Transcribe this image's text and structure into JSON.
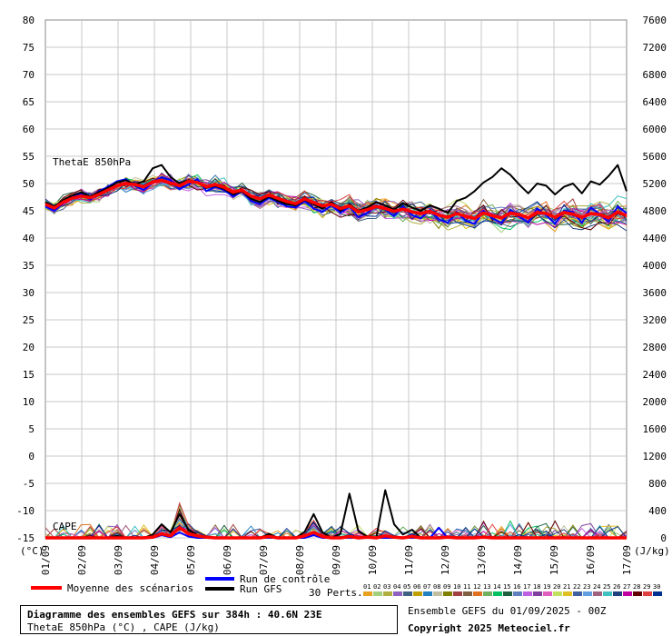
{
  "chart_data": {
    "type": "line",
    "title": "Diagramme des ensembles GEFS sur 384h : 40.6N 23E",
    "subtitle": "ThetaE 850hPa (°C) , CAPE (J/kg)",
    "panel_labels": {
      "thetae": "ThetaE 850hPa",
      "cape": "CAPE"
    },
    "y_left": {
      "unit_label": "(°C)",
      "ticks": [
        80,
        75,
        70,
        65,
        60,
        55,
        50,
        45,
        40,
        35,
        30,
        25,
        20,
        15,
        10,
        5,
        0,
        -5,
        -10,
        -15
      ],
      "range": [
        -15,
        80
      ]
    },
    "y_right": {
      "unit_label": "(J/kg)",
      "ticks": [
        7600,
        7200,
        6800,
        6400,
        6000,
        5600,
        5200,
        4800,
        4400,
        4000,
        3600,
        3200,
        2800,
        2400,
        2000,
        1600,
        1200,
        800,
        400,
        0
      ],
      "range": [
        0,
        7600
      ]
    },
    "x_ticks": [
      "01/09",
      "02/09",
      "03/09",
      "04/09",
      "05/09",
      "06/09",
      "07/09",
      "08/09",
      "09/09",
      "10/09",
      "11/09",
      "12/09",
      "13/09",
      "14/09",
      "15/09",
      "16/09",
      "17/09"
    ],
    "x_days": 16,
    "grid": true,
    "series": [
      {
        "name": "Moyenne des scénarios",
        "color": "#ff0000",
        "kind": "thetae",
        "values": [
          46.2,
          45.5,
          46.6,
          47.3,
          47.7,
          47.4,
          48.0,
          48.8,
          49.6,
          50.0,
          49.8,
          49.4,
          50.3,
          50.6,
          50.1,
          49.6,
          50.4,
          50.2,
          49.4,
          49.8,
          49.3,
          48.4,
          48.8,
          47.7,
          47.2,
          47.9,
          47.3,
          46.7,
          46.3,
          47.2,
          46.5,
          45.9,
          46.2,
          45.4,
          45.9,
          44.8,
          45.2,
          45.8,
          45.4,
          44.9,
          45.3,
          44.8,
          44.5,
          44.9,
          44.2,
          43.8,
          44.5,
          44.0,
          43.6,
          44.6,
          44.1,
          43.7,
          44.6,
          44.3,
          43.7,
          44.7,
          44.5,
          43.8,
          44.7,
          44.4,
          43.8,
          44.5,
          44.3,
          43.7,
          44.8,
          44.1
        ]
      },
      {
        "name": "Run de contrôle",
        "color": "#0000ff",
        "kind": "thetae",
        "values": [
          45.8,
          45.0,
          46.4,
          47.6,
          48.2,
          47.0,
          48.6,
          49.4,
          50.4,
          50.8,
          49.6,
          48.8,
          50.2,
          51.2,
          50.6,
          49.0,
          49.8,
          50.8,
          48.6,
          49.4,
          48.8,
          47.6,
          48.6,
          46.8,
          46.2,
          47.4,
          46.6,
          45.8,
          45.6,
          46.8,
          45.4,
          44.8,
          46.0,
          44.6,
          45.8,
          43.8,
          44.6,
          46.0,
          45.2,
          44.0,
          45.8,
          44.2,
          43.6,
          45.2,
          43.4,
          42.8,
          44.8,
          43.2,
          42.6,
          45.0,
          43.6,
          42.8,
          45.2,
          44.0,
          42.8,
          45.4,
          44.2,
          42.6,
          45.0,
          44.8,
          42.8,
          45.6,
          44.4,
          43.0,
          45.8,
          44.6
        ]
      },
      {
        "name": "Run GFS",
        "color": "#000000",
        "kind": "thetae",
        "values": [
          46.6,
          45.8,
          47.0,
          47.8,
          48.4,
          47.6,
          48.4,
          49.2,
          50.2,
          50.6,
          49.8,
          50.4,
          52.8,
          53.4,
          51.2,
          50.0,
          50.6,
          50.2,
          49.2,
          49.6,
          49.0,
          48.0,
          48.6,
          47.2,
          46.6,
          47.6,
          46.8,
          46.2,
          46.0,
          47.0,
          46.2,
          45.4,
          46.6,
          45.0,
          46.2,
          45.0,
          45.6,
          46.6,
          46.0,
          45.2,
          46.4,
          45.6,
          45.0,
          46.0,
          45.4,
          44.6,
          46.8,
          47.4,
          48.6,
          50.2,
          51.2,
          52.8,
          51.6,
          49.8,
          48.2,
          50.0,
          49.6,
          48.0,
          49.4,
          50.0,
          48.2,
          50.4,
          49.8,
          51.4,
          53.4,
          48.6
        ]
      },
      {
        "name": "Moyenne des scénarios",
        "color": "#ff0000",
        "kind": "cape",
        "values": [
          0,
          0,
          0,
          0,
          0,
          0,
          0,
          0,
          0,
          0,
          0,
          0,
          10,
          60,
          30,
          150,
          60,
          30,
          10,
          0,
          0,
          0,
          0,
          0,
          0,
          20,
          0,
          0,
          0,
          30,
          80,
          20,
          0,
          0,
          20,
          0,
          10,
          0,
          30,
          10,
          0,
          20,
          0,
          0,
          0,
          10,
          0,
          0,
          0,
          10,
          0,
          0,
          0,
          0,
          0,
          0,
          0,
          0,
          0,
          0,
          0,
          0,
          0,
          0,
          0,
          0
        ]
      },
      {
        "name": "Run de contrôle",
        "color": "#0000ff",
        "kind": "cape",
        "values": [
          0,
          0,
          0,
          0,
          0,
          0,
          0,
          0,
          0,
          0,
          0,
          0,
          0,
          40,
          10,
          80,
          20,
          0,
          0,
          0,
          0,
          0,
          0,
          0,
          0,
          0,
          0,
          0,
          0,
          0,
          40,
          0,
          0,
          0,
          0,
          0,
          0,
          0,
          0,
          0,
          0,
          0,
          0,
          0,
          150,
          0,
          0,
          0,
          0,
          0,
          0,
          0,
          0,
          0,
          0,
          0,
          0,
          0,
          0,
          0,
          0,
          0,
          0,
          0,
          0,
          0
        ]
      },
      {
        "name": "Run GFS",
        "color": "#000000",
        "kind": "cape",
        "values": [
          0,
          0,
          0,
          0,
          0,
          0,
          0,
          0,
          30,
          0,
          0,
          0,
          50,
          200,
          80,
          350,
          120,
          40,
          0,
          0,
          0,
          0,
          0,
          0,
          0,
          60,
          0,
          0,
          0,
          90,
          350,
          80,
          0,
          60,
          650,
          100,
          20,
          0,
          700,
          200,
          50,
          120,
          0,
          0,
          0,
          0,
          0,
          0,
          0,
          0,
          0,
          0,
          0,
          0,
          0,
          0,
          0,
          0,
          0,
          0,
          0,
          0,
          0,
          0,
          0,
          0
        ]
      }
    ],
    "perturbations": {
      "label": "30 Perts.",
      "codes": [
        "01",
        "02",
        "03",
        "04",
        "05",
        "06",
        "07",
        "08",
        "09",
        "10",
        "11",
        "12",
        "13",
        "14",
        "15",
        "16",
        "17",
        "18",
        "19",
        "20",
        "21",
        "22",
        "23",
        "24",
        "25",
        "26",
        "27",
        "28",
        "29",
        "30"
      ],
      "colors": [
        "#e8a020",
        "#a0d080",
        "#b0b040",
        "#9060c0",
        "#406080",
        "#c0a000",
        "#2080c0",
        "#c0c0a0",
        "#808000",
        "#a04040",
        "#806040",
        "#e07020",
        "#70b060",
        "#00c060",
        "#206040",
        "#6080c0",
        "#c060e0",
        "#8040a0",
        "#e060c0",
        "#c0e060",
        "#e0c020",
        "#4060a0",
        "#60a0e0",
        "#a06080",
        "#40c0c0",
        "#204080",
        "#c000a0",
        "#600000",
        "#e04040",
        "#003090"
      ]
    },
    "legend": {
      "mean": "Moyenne des scénarios",
      "control": "Run de contrôle",
      "gfs": "Run GFS"
    }
  },
  "footer": {
    "title": "Diagramme des ensembles GEFS sur 384h : 40.6N 23E",
    "subtitle": "ThetaE 850hPa (°C) , CAPE (J/kg)",
    "run_info": "Ensemble GEFS du 01/09/2025 - 00Z",
    "copyright": "Copyright 2025 Meteociel.fr"
  }
}
